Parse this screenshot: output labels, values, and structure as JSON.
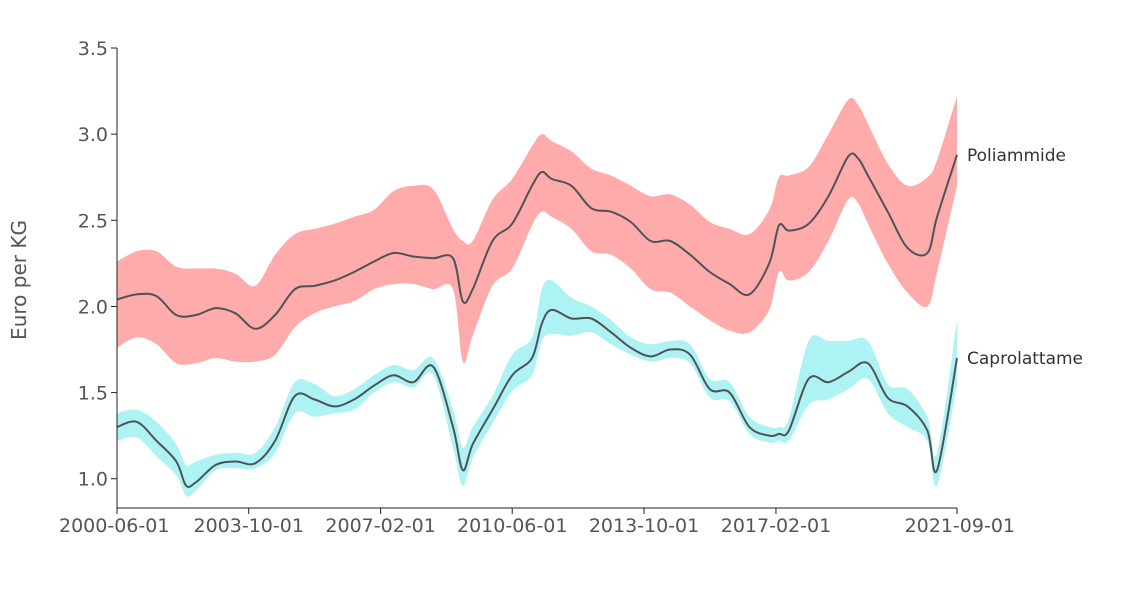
{
  "chart_data": {
    "type": "area",
    "ylabel": "Euro per KG",
    "xlabel": "",
    "ylim": [
      0.83,
      3.5
    ],
    "yticks": [
      1.0,
      1.5,
      2.0,
      2.5,
      3.0,
      3.5
    ],
    "ytick_labels": [
      "1.0",
      "1.5",
      "2.0",
      "2.5",
      "3.0",
      "3.5"
    ],
    "xlim": [
      "2000-06-01",
      "2021-09-01"
    ],
    "xticks": [
      "2000-06-01",
      "2003-10-01",
      "2007-02-01",
      "2010-06-01",
      "2013-10-01",
      "2017-02-01",
      "2021-09-01"
    ],
    "grid": false,
    "legend": "inline-right",
    "series": [
      {
        "name": "Poliammide",
        "line_color": "#4d5358",
        "band_color": "#ffabab",
        "x": [
          "2000-06-01",
          "2000-12-01",
          "2001-06-01",
          "2001-12-01",
          "2002-06-01",
          "2002-12-01",
          "2003-06-01",
          "2003-12-01",
          "2004-06-01",
          "2004-12-01",
          "2005-06-01",
          "2005-12-01",
          "2006-06-01",
          "2006-12-01",
          "2007-06-01",
          "2007-12-01",
          "2008-06-01",
          "2008-12-01",
          "2009-03-01",
          "2009-06-01",
          "2009-12-01",
          "2010-06-01",
          "2010-12-01",
          "2011-03-01",
          "2011-06-01",
          "2011-12-01",
          "2012-06-01",
          "2012-12-01",
          "2013-06-01",
          "2013-12-01",
          "2014-06-01",
          "2014-12-01",
          "2015-06-01",
          "2015-12-01",
          "2016-06-01",
          "2016-12-01",
          "2017-03-01",
          "2017-06-01",
          "2017-12-01",
          "2018-06-01",
          "2018-12-01",
          "2019-03-01",
          "2019-06-01",
          "2019-12-01",
          "2020-06-01",
          "2020-12-01",
          "2021-03-01",
          "2021-09-01"
        ],
        "values": [
          2.04,
          2.07,
          2.06,
          1.95,
          1.95,
          1.99,
          1.96,
          1.87,
          1.95,
          2.1,
          2.12,
          2.15,
          2.2,
          2.26,
          2.31,
          2.29,
          2.28,
          2.28,
          2.03,
          2.1,
          2.38,
          2.48,
          2.7,
          2.78,
          2.74,
          2.7,
          2.57,
          2.55,
          2.49,
          2.38,
          2.38,
          2.3,
          2.2,
          2.13,
          2.07,
          2.25,
          2.47,
          2.44,
          2.48,
          2.64,
          2.87,
          2.86,
          2.76,
          2.55,
          2.34,
          2.31,
          2.52,
          2.88
        ],
        "lower": [
          1.76,
          1.82,
          1.78,
          1.67,
          1.67,
          1.7,
          1.68,
          1.68,
          1.72,
          1.88,
          1.96,
          2.0,
          2.03,
          2.1,
          2.13,
          2.13,
          2.1,
          2.1,
          1.68,
          1.83,
          2.12,
          2.22,
          2.47,
          2.55,
          2.52,
          2.45,
          2.32,
          2.3,
          2.22,
          2.1,
          2.08,
          2.0,
          1.92,
          1.86,
          1.85,
          1.98,
          2.2,
          2.15,
          2.2,
          2.38,
          2.62,
          2.6,
          2.48,
          2.25,
          2.08,
          2.0,
          2.2,
          2.7
        ],
        "upper": [
          2.26,
          2.32,
          2.32,
          2.23,
          2.22,
          2.22,
          2.19,
          2.12,
          2.3,
          2.42,
          2.45,
          2.48,
          2.52,
          2.56,
          2.67,
          2.7,
          2.68,
          2.45,
          2.38,
          2.38,
          2.62,
          2.74,
          2.93,
          3.0,
          2.96,
          2.9,
          2.8,
          2.76,
          2.7,
          2.64,
          2.65,
          2.59,
          2.49,
          2.45,
          2.42,
          2.56,
          2.75,
          2.76,
          2.81,
          3.0,
          3.2,
          3.17,
          3.06,
          2.83,
          2.7,
          2.75,
          2.85,
          3.22
        ]
      },
      {
        "name": "Caprolattame",
        "line_color": "#4d5358",
        "band_color": "#aef3f3",
        "x": [
          "2000-06-01",
          "2000-12-01",
          "2001-06-01",
          "2001-12-01",
          "2002-03-01",
          "2002-06-01",
          "2002-12-01",
          "2003-06-01",
          "2003-12-01",
          "2004-06-01",
          "2004-12-01",
          "2005-06-01",
          "2005-12-01",
          "2006-06-01",
          "2006-12-01",
          "2007-06-01",
          "2007-12-01",
          "2008-06-01",
          "2008-12-01",
          "2009-03-01",
          "2009-06-01",
          "2009-12-01",
          "2010-06-01",
          "2010-12-01",
          "2011-03-01",
          "2011-06-01",
          "2011-12-01",
          "2012-06-01",
          "2012-12-01",
          "2013-06-01",
          "2013-12-01",
          "2014-06-01",
          "2014-12-01",
          "2015-06-01",
          "2015-12-01",
          "2016-06-01",
          "2016-12-01",
          "2017-03-01",
          "2017-06-01",
          "2017-12-01",
          "2018-06-01",
          "2018-12-01",
          "2019-06-01",
          "2019-12-01",
          "2020-06-01",
          "2020-12-01",
          "2021-03-01",
          "2021-09-01"
        ],
        "values": [
          1.3,
          1.33,
          1.22,
          1.1,
          0.96,
          0.98,
          1.08,
          1.1,
          1.09,
          1.22,
          1.48,
          1.46,
          1.42,
          1.46,
          1.54,
          1.6,
          1.56,
          1.65,
          1.3,
          1.05,
          1.2,
          1.4,
          1.6,
          1.7,
          1.9,
          1.98,
          1.93,
          1.93,
          1.85,
          1.76,
          1.71,
          1.75,
          1.72,
          1.52,
          1.5,
          1.3,
          1.25,
          1.26,
          1.28,
          1.58,
          1.56,
          1.62,
          1.67,
          1.47,
          1.42,
          1.28,
          1.05,
          1.7
        ],
        "lower": [
          1.22,
          1.24,
          1.13,
          1.02,
          0.9,
          0.93,
          1.05,
          1.06,
          1.06,
          1.15,
          1.38,
          1.36,
          1.38,
          1.4,
          1.5,
          1.56,
          1.53,
          1.6,
          1.18,
          0.96,
          1.12,
          1.32,
          1.51,
          1.6,
          1.8,
          1.84,
          1.83,
          1.85,
          1.78,
          1.72,
          1.68,
          1.7,
          1.67,
          1.47,
          1.45,
          1.26,
          1.21,
          1.22,
          1.22,
          1.43,
          1.46,
          1.52,
          1.58,
          1.38,
          1.3,
          1.22,
          0.96,
          1.55
        ],
        "upper": [
          1.38,
          1.4,
          1.33,
          1.2,
          1.08,
          1.1,
          1.14,
          1.15,
          1.15,
          1.3,
          1.56,
          1.55,
          1.48,
          1.52,
          1.6,
          1.66,
          1.63,
          1.7,
          1.4,
          1.18,
          1.3,
          1.48,
          1.72,
          1.82,
          2.1,
          2.15,
          2.05,
          2.0,
          1.92,
          1.82,
          1.78,
          1.8,
          1.78,
          1.58,
          1.56,
          1.36,
          1.3,
          1.3,
          1.35,
          1.8,
          1.8,
          1.8,
          1.8,
          1.55,
          1.52,
          1.36,
          1.15,
          1.92
        ]
      }
    ]
  }
}
